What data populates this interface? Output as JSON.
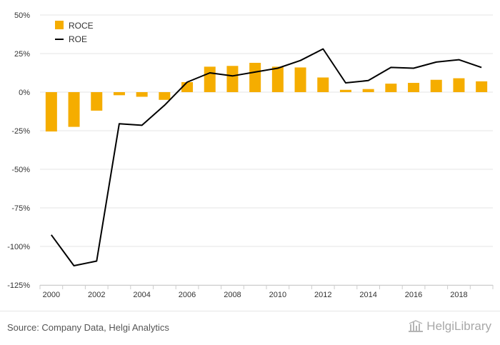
{
  "chart_data": {
    "type": "bar",
    "categories": [
      "2000",
      "2001",
      "2002",
      "2003",
      "2004",
      "2005",
      "2006",
      "2007",
      "2008",
      "2009",
      "2010",
      "2011",
      "2012",
      "2013",
      "2014",
      "2015",
      "2016",
      "2017",
      "2018",
      "2019"
    ],
    "x_tick_labels": [
      "2000",
      "2002",
      "2004",
      "2006",
      "2008",
      "2010",
      "2012",
      "2014",
      "2016",
      "2018"
    ],
    "y_tick_labels": [
      "50%",
      "25%",
      "0%",
      "-25%",
      "-50%",
      "-75%",
      "-100%",
      "-125%"
    ],
    "y_ticks": [
      50,
      25,
      0,
      -25,
      -50,
      -75,
      -100,
      -125
    ],
    "ylim": [
      -125,
      50
    ],
    "series": [
      {
        "name": "ROCE",
        "type": "bar",
        "color": "#f5ad00",
        "values": [
          -25.5,
          -22.5,
          -12.0,
          -2.0,
          -3.0,
          -5.0,
          6.5,
          16.5,
          17.0,
          19.0,
          16.5,
          16.0,
          9.5,
          1.5,
          2.0,
          5.5,
          6.0,
          8.0,
          9.0,
          7.0
        ]
      },
      {
        "name": "ROE",
        "type": "line",
        "color": "#000000",
        "values": [
          -92.5,
          -112.5,
          -109.5,
          -20.5,
          -21.5,
          -8.5,
          6.5,
          12.5,
          10.5,
          13.0,
          15.5,
          20.5,
          28.0,
          6.0,
          7.5,
          16.0,
          15.5,
          19.5,
          21.0,
          16.0
        ]
      }
    ],
    "grid": true,
    "legend_position": "top-left"
  },
  "legend": {
    "roce_label": "ROCE",
    "roe_label": "ROE"
  },
  "footer": {
    "source": "Source: Company Data, Helgi Analytics",
    "brand": "HelgiLibrary"
  }
}
